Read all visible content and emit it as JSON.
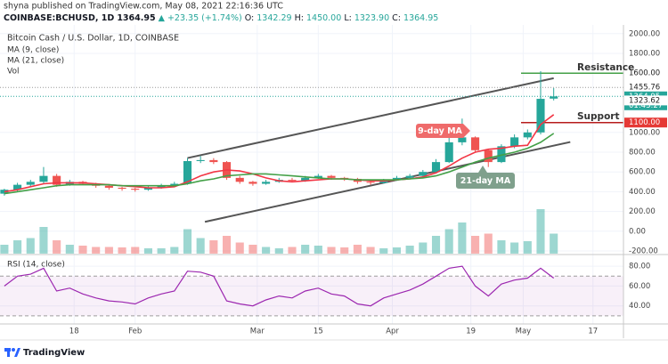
{
  "header": {
    "publisher": "shyna published on TradingView.com, May 08, 2021 22:16:36 UTC",
    "symbol": "COINBASE:BCHUSD, 1D",
    "last": "1364.95",
    "change": "▲ +23.35 (+1.74%)",
    "ohlc": [
      {
        "key": "O:",
        "value": "1342.29"
      },
      {
        "key": "H:",
        "value": "1450.00"
      },
      {
        "key": "L:",
        "value": "1323.90"
      },
      {
        "key": "C:",
        "value": "1364.95"
      }
    ]
  },
  "footer": {
    "brand": "TradingView"
  },
  "chart_data": [
    {
      "type": "candlestick",
      "title": "Bitcoin Cash / U.S. Dollar, 1D, COINBASE",
      "x": [
        2,
        5,
        8,
        11,
        14,
        17,
        20,
        23,
        26,
        29,
        32,
        35,
        38,
        41,
        44,
        47,
        50,
        53,
        56,
        59,
        62,
        65,
        68,
        71,
        74,
        77,
        80,
        83,
        86,
        89,
        92,
        95,
        98,
        101,
        104,
        107,
        110,
        113,
        116,
        119,
        122,
        125,
        128
      ],
      "open": [
        380,
        420,
        470,
        500,
        560,
        470,
        500,
        480,
        460,
        440,
        430,
        420,
        440,
        460,
        480,
        710,
        720,
        700,
        540,
        500,
        480,
        500,
        520,
        510,
        540,
        560,
        540,
        530,
        500,
        490,
        520,
        540,
        560,
        600,
        700,
        900,
        950,
        820,
        700,
        860,
        950,
        1000,
        1342.29
      ],
      "high": [
        430,
        490,
        520,
        650,
        580,
        520,
        510,
        490,
        470,
        450,
        440,
        460,
        480,
        500,
        740,
        760,
        740,
        710,
        560,
        510,
        520,
        540,
        540,
        560,
        580,
        570,
        550,
        540,
        510,
        530,
        560,
        580,
        620,
        730,
        980,
        1140,
        960,
        830,
        880,
        980,
        1030,
        1620,
        1450
      ],
      "low": [
        360,
        400,
        450,
        480,
        450,
        460,
        470,
        440,
        420,
        410,
        400,
        410,
        430,
        450,
        470,
        690,
        680,
        520,
        480,
        460,
        470,
        490,
        500,
        500,
        530,
        520,
        510,
        480,
        470,
        480,
        510,
        530,
        550,
        590,
        690,
        870,
        800,
        650,
        690,
        840,
        930,
        980,
        1323.9
      ],
      "close": [
        420,
        470,
        500,
        560,
        470,
        500,
        480,
        460,
        440,
        430,
        420,
        440,
        460,
        480,
        710,
        720,
        700,
        540,
        500,
        480,
        500,
        520,
        510,
        540,
        560,
        540,
        530,
        500,
        490,
        520,
        540,
        560,
        600,
        700,
        900,
        950,
        820,
        700,
        860,
        950,
        1000,
        1340,
        1364.95
      ],
      "up_color": "#26a69a",
      "down_color": "#ef5350",
      "series": [
        {
          "name": "MA (9, close)",
          "type": "line",
          "color": "#f23645",
          "values": [
            400,
            420,
            450,
            480,
            490,
            490,
            490,
            480,
            470,
            460,
            450,
            440,
            440,
            450,
            500,
            560,
            600,
            620,
            610,
            580,
            540,
            510,
            500,
            510,
            520,
            530,
            530,
            520,
            510,
            510,
            520,
            530,
            550,
            590,
            660,
            740,
            800,
            830,
            840,
            860,
            870,
            1080,
            1180
          ]
        },
        {
          "name": "MA (21, close)",
          "type": "line",
          "color": "#43a047",
          "values": [
            380,
            400,
            420,
            440,
            460,
            470,
            470,
            470,
            470,
            460,
            460,
            460,
            460,
            460,
            480,
            510,
            530,
            560,
            570,
            580,
            580,
            570,
            560,
            550,
            540,
            530,
            530,
            520,
            520,
            520,
            520,
            530,
            540,
            560,
            600,
            650,
            700,
            740,
            770,
            800,
            840,
            900,
            990
          ]
        },
        {
          "name": "Vol",
          "type": "bar",
          "values": [
            20,
            30,
            35,
            60,
            30,
            20,
            18,
            15,
            15,
            14,
            15,
            12,
            12,
            15,
            55,
            35,
            30,
            40,
            25,
            20,
            15,
            12,
            15,
            20,
            18,
            15,
            14,
            20,
            15,
            12,
            14,
            18,
            25,
            40,
            55,
            70,
            40,
            45,
            30,
            25,
            28,
            100,
            45
          ]
        }
      ],
      "xlim": [
        1,
        144
      ],
      "ylim": [
        -200,
        2000
      ],
      "yticks": [
        {
          "value": 2000,
          "label": "2000.00"
        },
        {
          "value": 1800,
          "label": "1800.00"
        },
        {
          "value": 1000,
          "label": "1000.00"
        },
        {
          "value": 800,
          "label": "800.00"
        },
        {
          "value": 600,
          "label": "600.00"
        },
        {
          "value": 400,
          "label": "400.00"
        },
        {
          "value": 200,
          "label": "200.00"
        },
        {
          "value": 0,
          "label": "0.00"
        },
        {
          "value": -200,
          "label": "-200.00"
        }
      ],
      "grid": true,
      "price_tags": [
        {
          "value": 1600,
          "label": "1600.00",
          "bg": "#ffffff",
          "fg": "#222222"
        },
        {
          "value": 1455.76,
          "label": "1455.76",
          "bg": "#ffffff",
          "fg": "#222222",
          "dotted": true
        },
        {
          "value": 1364.95,
          "label": "1364.95",
          "sublabel": "01:43:27",
          "bg": "#26a69a",
          "fg": "#ffffff",
          "dotted": true
        },
        {
          "value": 1323.62,
          "label": "1323.62",
          "bg": "#ffffff",
          "fg": "#222222"
        },
        {
          "value": 1100,
          "label": "1100.00",
          "bg": "#e53935",
          "fg": "#ffffff"
        }
      ],
      "trendlines": [
        {
          "points": [
            [
              44,
              741
            ],
            [
              128,
              1549
            ]
          ],
          "color": "#555555"
        },
        {
          "points": [
            [
              48,
              95
            ],
            [
              131.8,
              903
            ]
          ],
          "color": "#555555"
        }
      ],
      "levels": [
        {
          "value": 1600,
          "label": "Resistance",
          "color": "#43a047",
          "label_color": "#e53935"
        },
        {
          "value": 1100,
          "label": "Support",
          "color": "#b71c1c",
          "label_color": "#2e7d32"
        }
      ],
      "annotations": [
        {
          "text": "9-day MA",
          "color": "#ef6b6b"
        },
        {
          "text": "21-day MA",
          "color": "#7fa08c"
        }
      ]
    },
    {
      "type": "line",
      "x": [
        2,
        5,
        8,
        11,
        14,
        17,
        20,
        23,
        26,
        29,
        32,
        35,
        38,
        41,
        44,
        47,
        50,
        53,
        56,
        59,
        62,
        65,
        68,
        71,
        74,
        77,
        80,
        83,
        86,
        89,
        92,
        95,
        98,
        101,
        104,
        107,
        110,
        113,
        116,
        119,
        122,
        125,
        128
      ],
      "series": [
        {
          "name": "RSI (14, close)",
          "color": "#9c27b0",
          "values": [
            60,
            70,
            72,
            78,
            55,
            58,
            52,
            48,
            45,
            44,
            42,
            48,
            52,
            55,
            75,
            74,
            70,
            45,
            42,
            40,
            46,
            50,
            48,
            55,
            58,
            52,
            50,
            42,
            40,
            48,
            52,
            56,
            62,
            70,
            78,
            80,
            60,
            50,
            62,
            66,
            68,
            78,
            68
          ]
        }
      ],
      "xlim": [
        1,
        144
      ],
      "ylim": [
        20,
        90
      ],
      "yticks": [
        {
          "value": 80,
          "label": "80.00"
        },
        {
          "value": 60,
          "label": "60.00"
        },
        {
          "value": 40,
          "label": "40.00"
        }
      ],
      "band": [
        30,
        70
      ],
      "xticks": [
        18,
        {
          "value": 32,
          "label": "Feb"
        },
        {
          "value": 60,
          "label": "Mar"
        },
        {
          "value": 74,
          "label": "15"
        },
        {
          "value": 91,
          "label": "Apr"
        },
        {
          "value": 109,
          "label": "19"
        },
        {
          "value": 121,
          "label": "May"
        },
        {
          "value": 137,
          "label": "17"
        }
      ]
    }
  ]
}
